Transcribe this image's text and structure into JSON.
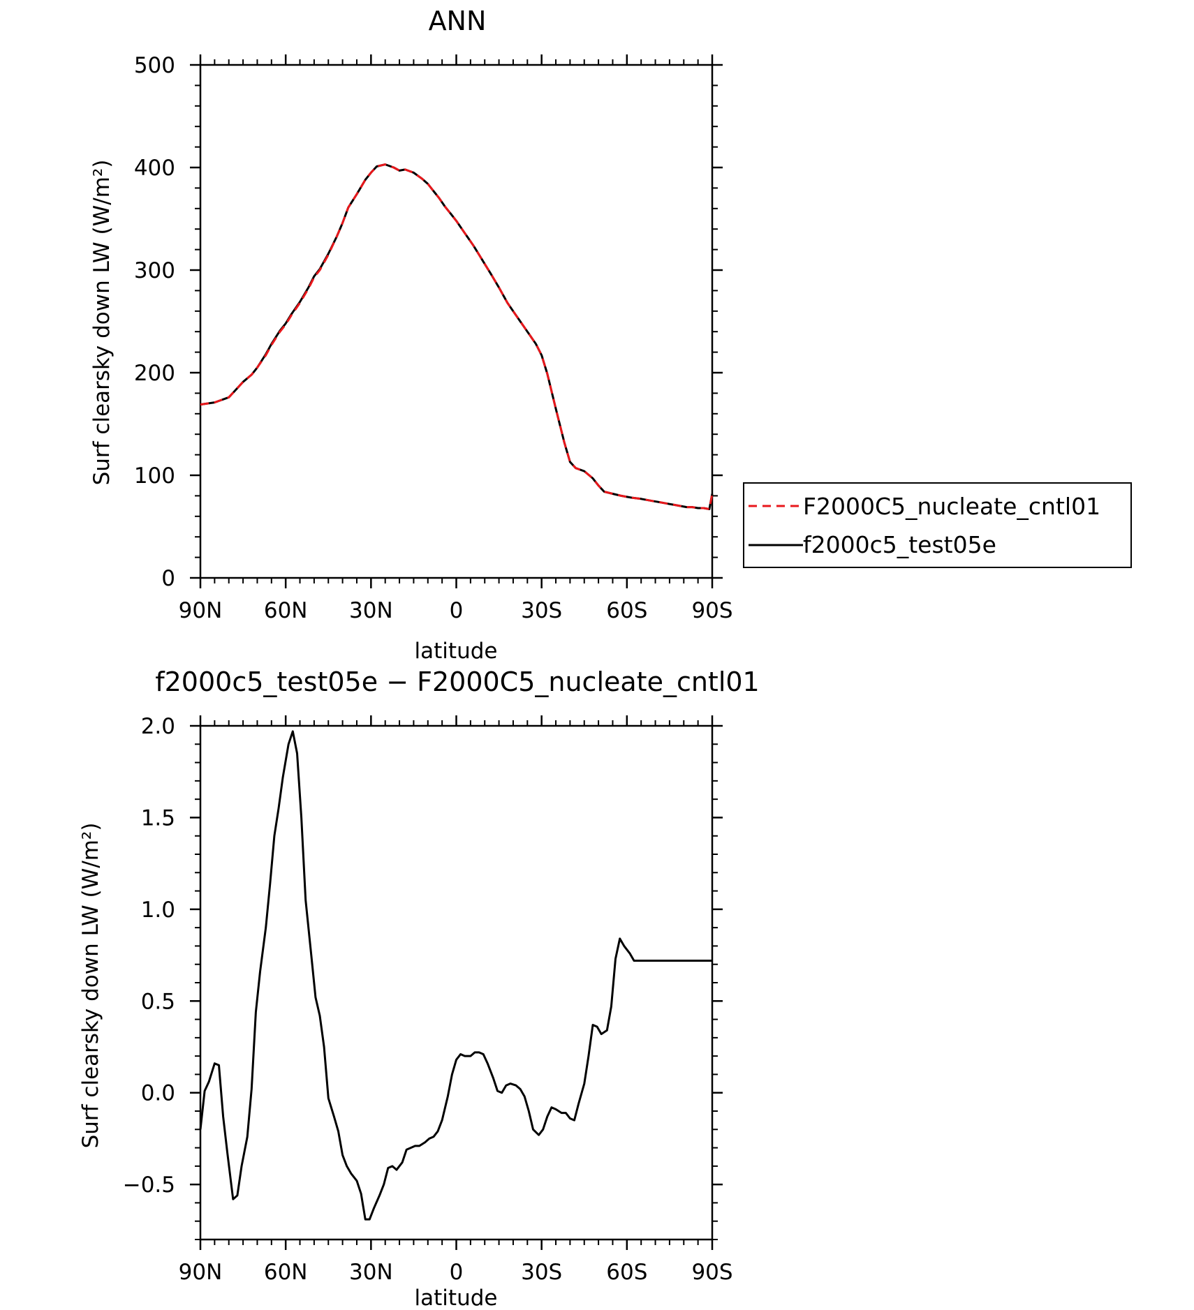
{
  "chart_data": [
    {
      "type": "line",
      "title": "ANN",
      "xlabel": "latitude",
      "ylabel": "Surf clearsky down LW (W/m²)",
      "ylim": [
        0,
        500
      ],
      "yticks": [
        0,
        100,
        200,
        300,
        400,
        500
      ],
      "ytick_labels": [
        "0",
        "100",
        "200",
        "300",
        "400",
        "500"
      ],
      "xlim": [
        90,
        -90
      ],
      "xticks": [
        90,
        60,
        30,
        0,
        -30,
        -60,
        -90
      ],
      "xtick_labels": [
        "90N",
        "60N",
        "30N",
        "0",
        "30S",
        "60S",
        "90S"
      ],
      "legend": {
        "placement": "right",
        "entries": [
          "F2000C5_nucleate_cntl01",
          "f2000c5_test05e"
        ]
      },
      "series": [
        {
          "name": "F2000C5_nucleate_cntl01",
          "color": "#e8171b",
          "dash": "dashed",
          "x": [
            90,
            85,
            80,
            78,
            75,
            72,
            70,
            67,
            65,
            62,
            60,
            58,
            55,
            52,
            50,
            48,
            45,
            42,
            40,
            38,
            35,
            32,
            30,
            28,
            25,
            22,
            20,
            18,
            15,
            12,
            10,
            8,
            6,
            4,
            2,
            0,
            -2,
            -4,
            -6,
            -8,
            -10,
            -12,
            -15,
            -18,
            -20,
            -22,
            -25,
            -28,
            -30,
            -32,
            -35,
            -38,
            -40,
            -42,
            -45,
            -48,
            -50,
            -52,
            -55,
            -58,
            -60,
            -62,
            -65,
            -67,
            -69,
            -71,
            -73,
            -75,
            -77,
            -79,
            -81,
            -83,
            -85,
            -87,
            -89,
            -90
          ],
          "y": [
            169,
            171,
            176,
            182,
            191,
            198,
            205,
            217,
            227,
            240,
            247,
            256,
            268,
            282,
            293,
            300,
            315,
            333,
            346,
            361,
            374,
            388,
            395,
            401,
            403,
            400,
            397,
            398,
            395,
            389,
            384,
            377,
            370,
            362,
            355,
            348,
            340,
            332,
            324,
            315,
            306,
            297,
            283,
            268,
            260,
            252,
            240,
            228,
            217,
            199,
            165,
            132,
            113,
            107,
            104,
            97,
            90,
            84,
            82,
            80,
            79,
            78,
            77,
            76,
            75,
            74,
            73,
            72,
            71,
            70,
            69,
            69,
            68,
            68,
            67,
            82
          ],
          "x_mapped_note": ""
        },
        {
          "name": "f2000c5_test05e",
          "color": "#000000",
          "dash": "solid",
          "x": [
            90,
            85,
            80,
            78,
            75,
            72,
            70,
            67,
            65,
            62,
            60,
            58,
            55,
            52,
            50,
            48,
            45,
            42,
            40,
            38,
            35,
            32,
            30,
            28,
            25,
            22,
            20,
            18,
            15,
            12,
            10,
            8,
            6,
            4,
            2,
            0,
            -2,
            -4,
            -6,
            -8,
            -10,
            -12,
            -15,
            -18,
            -20,
            -22,
            -25,
            -28,
            -30,
            -32,
            -35,
            -38,
            -40,
            -42,
            -45,
            -48,
            -50,
            -52,
            -55,
            -58,
            -60,
            -62,
            -65,
            -67,
            -69,
            -71,
            -73,
            -75,
            -77,
            -79,
            -81,
            -83,
            -85,
            -87,
            -89,
            -90
          ],
          "y": [
            169,
            171,
            176,
            182,
            191,
            198,
            205,
            218,
            228,
            241,
            248,
            257,
            269,
            283,
            294,
            301,
            316,
            333,
            346,
            361,
            374,
            388,
            395,
            401,
            403,
            400,
            397,
            398,
            395,
            389,
            384,
            377,
            370,
            362,
            355,
            348,
            340,
            332,
            324,
            315,
            306,
            297,
            283,
            268,
            260,
            252,
            240,
            228,
            217,
            199,
            165,
            132,
            113,
            107,
            104,
            97,
            90,
            84,
            82,
            80,
            79,
            78,
            77,
            76,
            75,
            74,
            73,
            72,
            71,
            70,
            69,
            69,
            68,
            68,
            67,
            82
          ]
        }
      ]
    },
    {
      "type": "line",
      "title": "f2000c5_test05e − F2000C5_nucleate_cntl01",
      "xlabel": "latitude",
      "ylabel": "Surf clearsky down LW (W/m²)",
      "ylim": [
        -0.8,
        2.0
      ],
      "yticks": [
        -0.5,
        0.0,
        0.5,
        1.0,
        1.5,
        2.0
      ],
      "ytick_labels": [
        "−0.5",
        "0.0",
        "0.5",
        "1.0",
        "1.5",
        "2.0"
      ],
      "xlim": [
        90,
        -90
      ],
      "xticks": [
        90,
        60,
        30,
        0,
        -30,
        -60,
        -90
      ],
      "xtick_labels": [
        "90N",
        "60N",
        "30N",
        "0",
        "30S",
        "60S",
        "90S"
      ],
      "series": [
        {
          "color": "#000000",
          "dash": "solid",
          "x": [
            90,
            88.5,
            87,
            85,
            83.5,
            82,
            80.5,
            78.5,
            77,
            75.5,
            73.5,
            72,
            70.5,
            69,
            67,
            65.5,
            64,
            62.5,
            61,
            59,
            57.5,
            56,
            54.5,
            53,
            51,
            49.5,
            48,
            46.5,
            45,
            43,
            41.5,
            40,
            38.5,
            37,
            35,
            33.5,
            32,
            30.5,
            29,
            27,
            25.5,
            24,
            22.5,
            21,
            19,
            17.5,
            16,
            14.5,
            13,
            11,
            9.5,
            8,
            6.5,
            5,
            3,
            1.5,
            0,
            -1.5,
            -3,
            -5,
            -6.5,
            -8,
            -9.5,
            -11,
            -13,
            -14.5,
            -16,
            -17.5,
            -19,
            -21,
            -22.5,
            -24,
            -25.5,
            -27,
            -29,
            -30.5,
            -32,
            -33.5,
            -35,
            -37,
            -38.5,
            -40,
            -41.5,
            -43,
            -45,
            -46.5,
            -48,
            -49.5,
            -51,
            -53,
            -54.5,
            -56,
            -57.5,
            -59,
            -61,
            -62.5,
            -64,
            -65.5,
            -67,
            -69,
            -70.5,
            -72,
            -73.5,
            -75,
            -77,
            -78.5,
            -80,
            -81.5,
            -83,
            -85,
            -86.5,
            -88,
            -90
          ],
          "y": [
            -0.2,
            0.01,
            0.06,
            0.16,
            0.15,
            -0.13,
            -0.33,
            -0.58,
            -0.56,
            -0.4,
            -0.24,
            0.02,
            0.44,
            0.66,
            0.9,
            1.14,
            1.4,
            1.55,
            1.72,
            1.9,
            1.97,
            1.85,
            1.5,
            1.05,
            0.75,
            0.52,
            0.42,
            0.25,
            -0.03,
            -0.13,
            -0.21,
            -0.34,
            -0.4,
            -0.44,
            -0.48,
            -0.55,
            -0.69,
            -0.69,
            -0.63,
            -0.56,
            -0.5,
            -0.41,
            -0.4,
            -0.42,
            -0.38,
            -0.31,
            -0.3,
            -0.29,
            -0.29,
            -0.27,
            -0.25,
            -0.24,
            -0.21,
            -0.15,
            -0.02,
            0.1,
            0.18,
            0.21,
            0.2,
            0.2,
            0.22,
            0.22,
            0.21,
            0.16,
            0.08,
            0.01,
            0.0,
            0.04,
            0.05,
            0.04,
            0.02,
            -0.02,
            -0.1,
            -0.2,
            -0.23,
            -0.2,
            -0.13,
            -0.08,
            -0.09,
            -0.11,
            -0.11,
            -0.14,
            -0.15,
            -0.06,
            0.05,
            0.2,
            0.37,
            0.36,
            0.32,
            0.34,
            0.47,
            0.73,
            0.84,
            0.8,
            0.76,
            0.72,
            0.72,
            0.72,
            0.72,
            0.72,
            0.72,
            0.72,
            0.72,
            0.72,
            0.72,
            0.72,
            0.72,
            0.72,
            0.72,
            0.72,
            0.72,
            0.72,
            0.72
          ]
        }
      ]
    }
  ]
}
